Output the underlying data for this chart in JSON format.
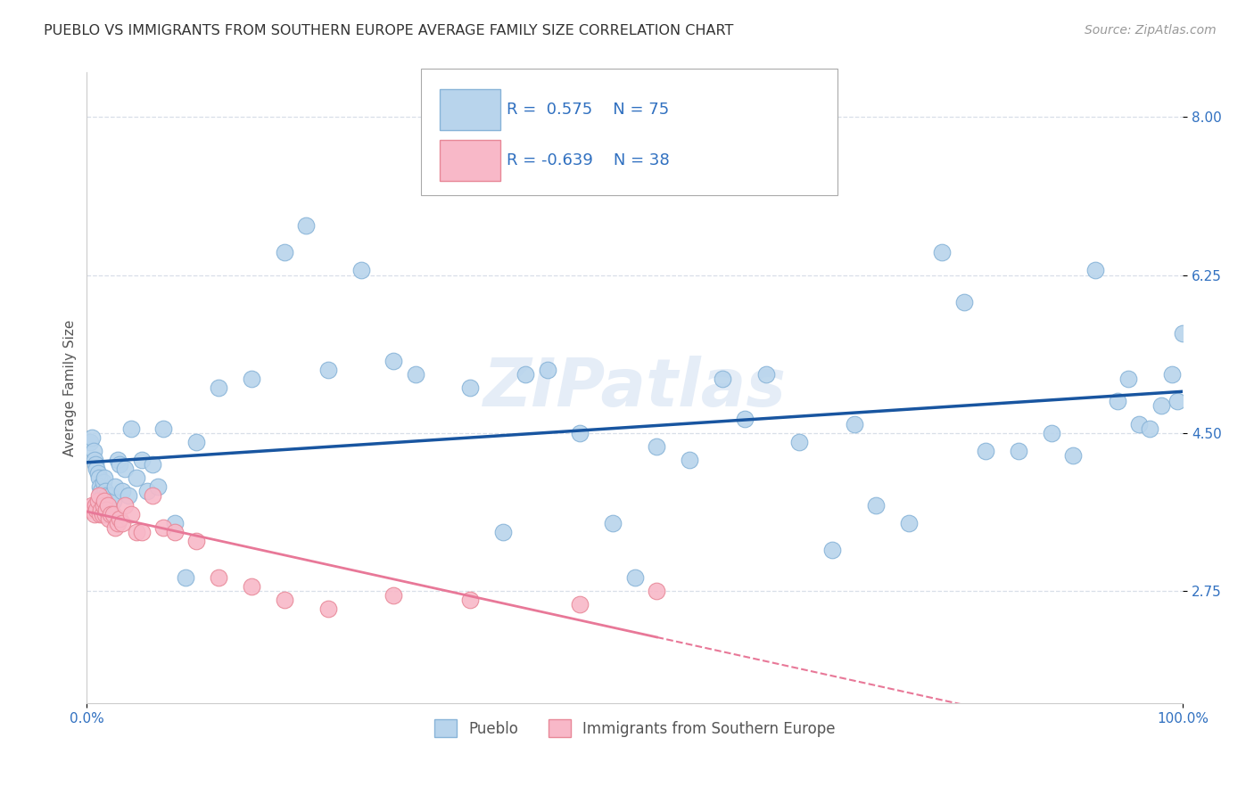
{
  "title": "PUEBLO VS IMMIGRANTS FROM SOUTHERN EUROPE AVERAGE FAMILY SIZE CORRELATION CHART",
  "source": "Source: ZipAtlas.com",
  "ylabel": "Average Family Size",
  "xlim": [
    0,
    1.0
  ],
  "ylim": [
    1.5,
    8.5
  ],
  "yticks": [
    2.75,
    4.5,
    6.25,
    8.0
  ],
  "xticklabels": [
    "0.0%",
    "100.0%"
  ],
  "yticklabels": [
    "2.75",
    "4.50",
    "6.25",
    "8.00"
  ],
  "pueblo_color": "#b8d4ec",
  "pueblo_edge": "#88b4d8",
  "immigrant_color": "#f8b8c8",
  "immigrant_edge": "#e88898",
  "line_blue": "#1855a0",
  "line_pink": "#e87898",
  "axis_color": "#3070c0",
  "grid_color": "#d8dfe8",
  "background_color": "#ffffff",
  "watermark": "ZIPatlas",
  "title_fontsize": 11.5,
  "label_fontsize": 11,
  "tick_fontsize": 11,
  "pueblo_x": [
    0.003,
    0.005,
    0.006,
    0.007,
    0.008,
    0.009,
    0.01,
    0.011,
    0.012,
    0.013,
    0.014,
    0.015,
    0.016,
    0.017,
    0.018,
    0.019,
    0.02,
    0.022,
    0.024,
    0.026,
    0.028,
    0.03,
    0.032,
    0.035,
    0.038,
    0.04,
    0.045,
    0.05,
    0.055,
    0.06,
    0.065,
    0.07,
    0.08,
    0.09,
    0.1,
    0.12,
    0.15,
    0.18,
    0.2,
    0.22,
    0.25,
    0.28,
    0.3,
    0.35,
    0.38,
    0.4,
    0.42,
    0.45,
    0.48,
    0.5,
    0.52,
    0.55,
    0.58,
    0.6,
    0.62,
    0.65,
    0.68,
    0.7,
    0.72,
    0.75,
    0.78,
    0.8,
    0.82,
    0.85,
    0.88,
    0.9,
    0.92,
    0.94,
    0.95,
    0.96,
    0.97,
    0.98,
    0.99,
    0.995,
    1.0
  ],
  "pueblo_y": [
    4.4,
    4.45,
    4.3,
    4.2,
    4.15,
    4.1,
    4.05,
    4.0,
    3.9,
    3.85,
    3.8,
    3.95,
    4.0,
    3.85,
    3.8,
    3.75,
    3.7,
    3.8,
    3.75,
    3.9,
    4.2,
    4.15,
    3.85,
    4.1,
    3.8,
    4.55,
    4.0,
    4.2,
    3.85,
    4.15,
    3.9,
    4.55,
    3.5,
    2.9,
    4.4,
    5.0,
    5.1,
    6.5,
    6.8,
    5.2,
    6.3,
    5.3,
    5.15,
    5.0,
    3.4,
    5.15,
    5.2,
    4.5,
    3.5,
    2.9,
    4.35,
    4.2,
    5.1,
    4.65,
    5.15,
    4.4,
    3.2,
    4.6,
    3.7,
    3.5,
    6.5,
    5.95,
    4.3,
    4.3,
    4.5,
    4.25,
    6.3,
    4.85,
    5.1,
    4.6,
    4.55,
    4.8,
    5.15,
    4.85,
    5.6
  ],
  "immigrant_x": [
    0.003,
    0.005,
    0.007,
    0.008,
    0.009,
    0.01,
    0.011,
    0.012,
    0.013,
    0.014,
    0.015,
    0.016,
    0.017,
    0.018,
    0.019,
    0.02,
    0.022,
    0.024,
    0.026,
    0.028,
    0.03,
    0.032,
    0.035,
    0.04,
    0.045,
    0.05,
    0.06,
    0.07,
    0.08,
    0.1,
    0.12,
    0.15,
    0.18,
    0.22,
    0.28,
    0.35,
    0.45,
    0.52
  ],
  "immigrant_y": [
    3.65,
    3.7,
    3.6,
    3.7,
    3.65,
    3.75,
    3.8,
    3.6,
    3.65,
    3.6,
    3.7,
    3.75,
    3.6,
    3.65,
    3.7,
    3.55,
    3.6,
    3.6,
    3.45,
    3.5,
    3.55,
    3.5,
    3.7,
    3.6,
    3.4,
    3.4,
    3.8,
    3.45,
    3.4,
    3.3,
    2.9,
    2.8,
    2.65,
    2.55,
    2.7,
    2.65,
    2.6,
    2.75
  ]
}
